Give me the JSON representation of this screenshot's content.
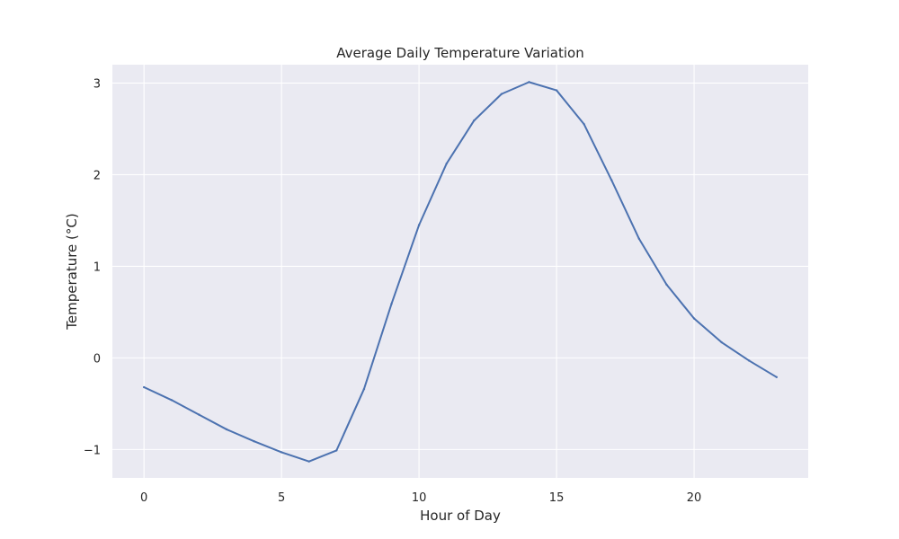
{
  "chart_data": {
    "type": "line",
    "title": "Average Daily Temperature Variation",
    "xlabel": "Hour of Day",
    "ylabel": "Temperature (°C)",
    "xlim": [
      -1.15,
      24.15
    ],
    "ylim": [
      -1.31,
      3.2
    ],
    "xticks": [
      0,
      5,
      10,
      15,
      20
    ],
    "yticks": [
      -1,
      0,
      1,
      2,
      3
    ],
    "ytick_labels": [
      "−1",
      "0",
      "1",
      "2",
      "3"
    ],
    "grid": true,
    "colors": {
      "plot_background": "#eaeaf2",
      "grid": "#ffffff",
      "line": "#4c72b0"
    },
    "series": [
      {
        "x": [
          0,
          1,
          2,
          3,
          4,
          5,
          6,
          7,
          8,
          9,
          10,
          11,
          12,
          13,
          14,
          15,
          16,
          17,
          18,
          19,
          20,
          21,
          22,
          23
        ],
        "values": [
          -0.32,
          -0.46,
          -0.62,
          -0.78,
          -0.91,
          -1.03,
          -1.13,
          -1.01,
          -0.34,
          0.59,
          1.45,
          2.12,
          2.59,
          2.88,
          3.01,
          2.92,
          2.55,
          1.94,
          1.3,
          0.8,
          0.43,
          0.17,
          -0.03,
          -0.21
        ]
      }
    ]
  }
}
